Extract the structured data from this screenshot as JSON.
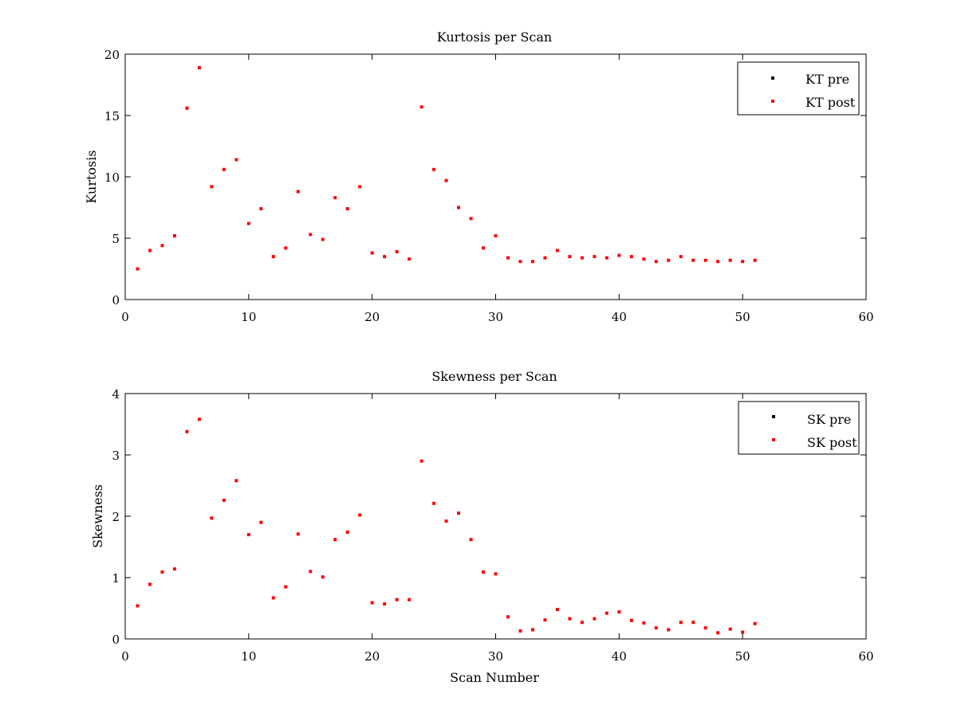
{
  "chart_data": [
    {
      "type": "scatter",
      "title": "Kurtosis per Scan",
      "xlabel": "",
      "ylabel": "Kurtosis",
      "xlim": [
        0,
        60
      ],
      "ylim": [
        0,
        20
      ],
      "xticks": [
        0,
        10,
        20,
        30,
        40,
        50,
        60
      ],
      "yticks": [
        0,
        5,
        10,
        15,
        20
      ],
      "grid": false,
      "legend_position": "top-right",
      "series": [
        {
          "name": "KT pre",
          "color": "#000000",
          "x": [],
          "y": []
        },
        {
          "name": "KT post",
          "color": "#ff0000",
          "x": [
            1,
            2,
            3,
            4,
            5,
            6,
            7,
            8,
            9,
            10,
            11,
            12,
            13,
            14,
            15,
            16,
            17,
            18,
            19,
            20,
            21,
            22,
            23,
            24,
            25,
            26,
            27,
            28,
            29,
            30,
            31,
            32,
            33,
            34,
            35,
            36,
            37,
            38,
            39,
            40,
            41,
            42,
            43,
            44,
            45,
            46,
            47,
            48,
            49,
            50,
            51
          ],
          "y": [
            2.5,
            4.0,
            4.4,
            5.2,
            15.6,
            18.9,
            9.2,
            10.6,
            11.4,
            6.2,
            7.4,
            3.5,
            4.2,
            8.8,
            5.3,
            4.9,
            8.3,
            7.4,
            9.2,
            3.8,
            3.5,
            3.9,
            3.3,
            15.7,
            10.6,
            9.7,
            7.5,
            6.6,
            4.2,
            5.2,
            3.4,
            3.1,
            3.1,
            3.4,
            4.0,
            3.5,
            3.4,
            3.5,
            3.4,
            3.6,
            3.5,
            3.3,
            3.1,
            3.2,
            3.5,
            3.2,
            3.2,
            3.1,
            3.2,
            3.1,
            3.2
          ]
        }
      ]
    },
    {
      "type": "scatter",
      "title": "Skewness per Scan",
      "xlabel": "Scan Number",
      "ylabel": "Skewness",
      "xlim": [
        0,
        60
      ],
      "ylim": [
        0,
        4
      ],
      "xticks": [
        0,
        10,
        20,
        30,
        40,
        50,
        60
      ],
      "yticks": [
        0,
        1,
        2,
        3,
        4
      ],
      "grid": false,
      "legend_position": "top-right",
      "series": [
        {
          "name": "SK pre",
          "color": "#000000",
          "x": [],
          "y": []
        },
        {
          "name": "SK post",
          "color": "#ff0000",
          "x": [
            1,
            2,
            3,
            4,
            5,
            6,
            7,
            8,
            9,
            10,
            11,
            12,
            13,
            14,
            15,
            16,
            17,
            18,
            19,
            20,
            21,
            22,
            23,
            24,
            25,
            26,
            27,
            28,
            29,
            30,
            31,
            32,
            33,
            34,
            35,
            36,
            37,
            38,
            39,
            40,
            41,
            42,
            43,
            44,
            45,
            46,
            47,
            48,
            49,
            50,
            51
          ],
          "y": [
            0.54,
            0.89,
            1.09,
            1.14,
            3.38,
            3.58,
            1.97,
            2.26,
            2.58,
            1.7,
            1.9,
            0.67,
            0.85,
            1.71,
            1.1,
            1.01,
            1.62,
            1.74,
            2.02,
            0.59,
            0.57,
            0.64,
            0.64,
            2.9,
            2.21,
            1.92,
            2.05,
            1.62,
            1.09,
            1.06,
            0.36,
            0.13,
            0.15,
            0.31,
            0.48,
            0.33,
            0.27,
            0.33,
            0.42,
            0.44,
            0.3,
            0.26,
            0.18,
            0.15,
            0.27,
            0.27,
            0.18,
            0.1,
            0.16,
            0.11,
            0.25
          ]
        }
      ]
    }
  ]
}
